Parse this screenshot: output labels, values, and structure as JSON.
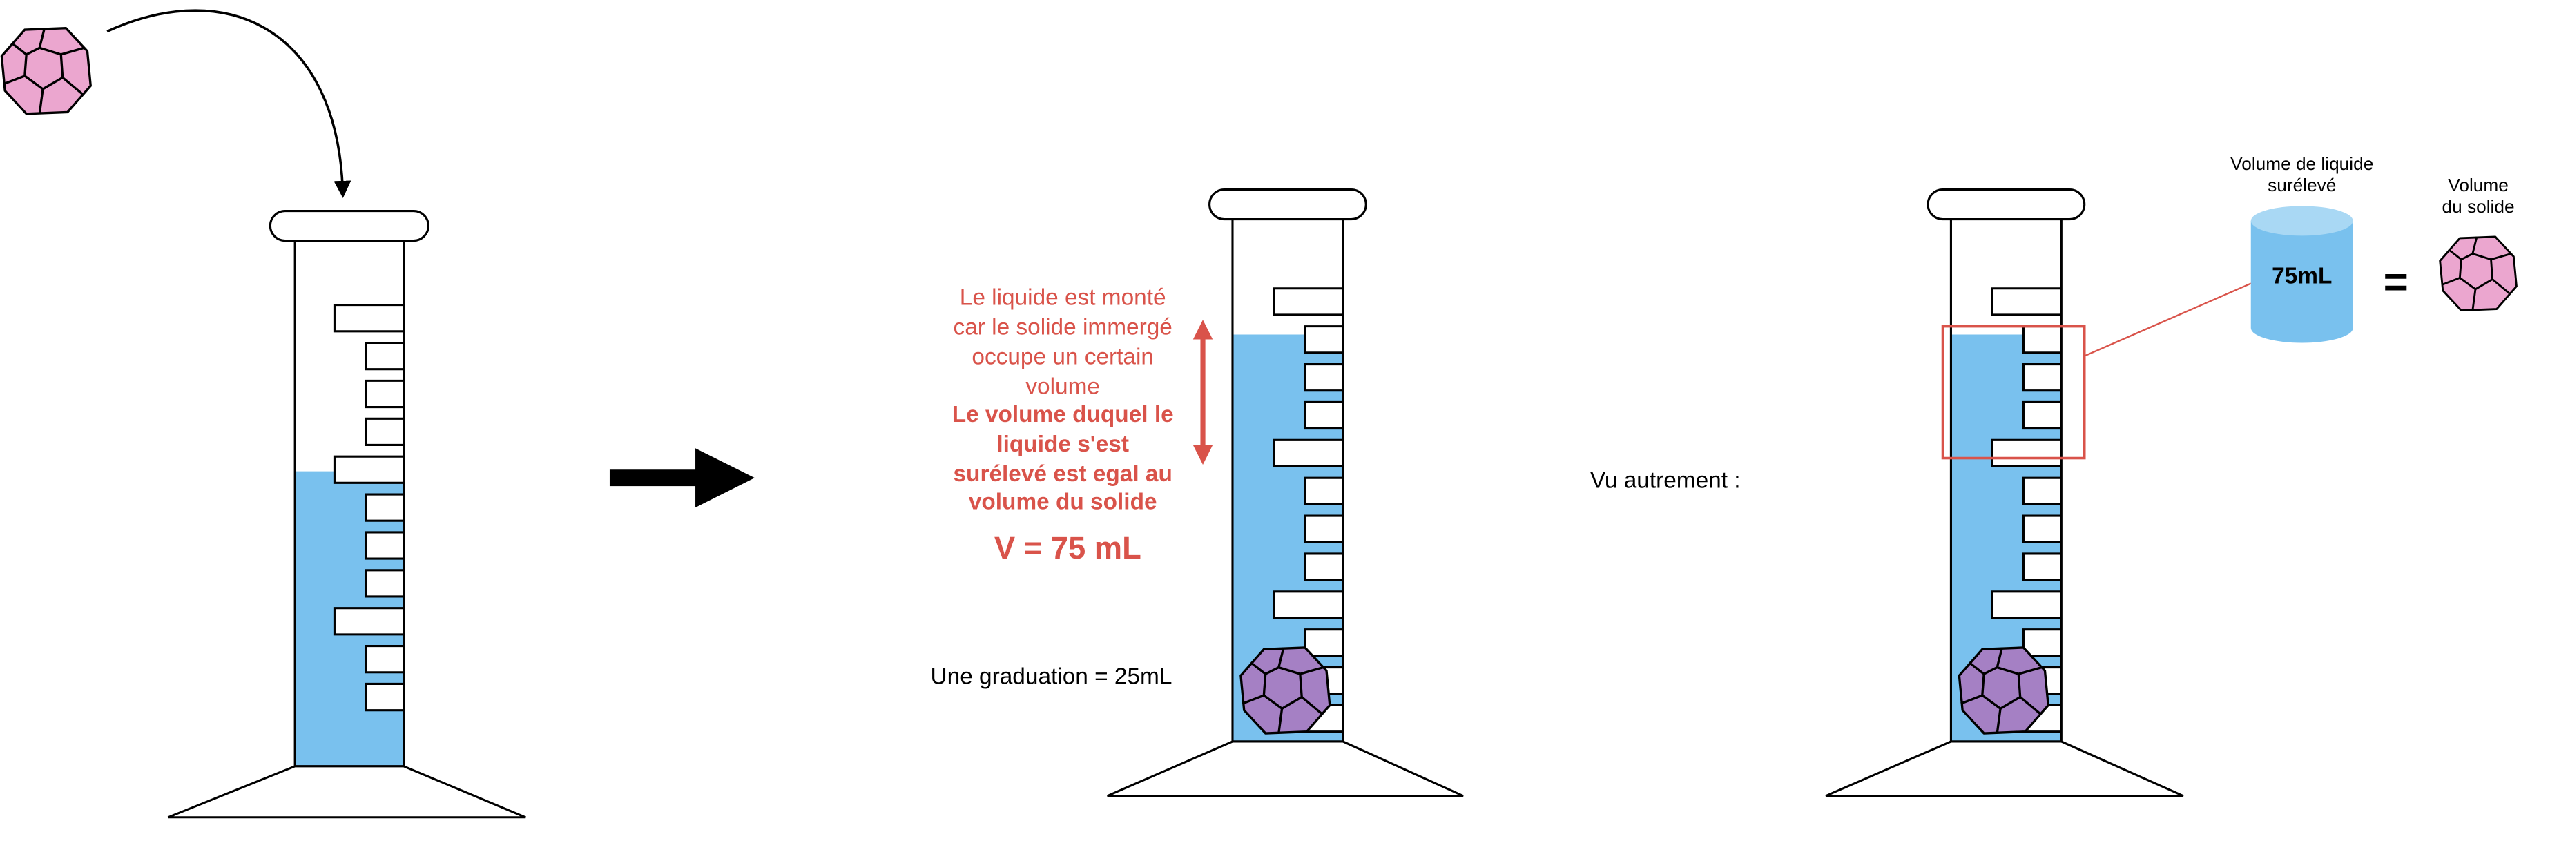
{
  "colors": {
    "liquid": "#79c1ee",
    "accent_red": "#d9534a",
    "solid_pink": "#eba6cf",
    "solid_immersed": "#a580c4",
    "outline": "#000000"
  },
  "icons": {
    "solid": "dodecahedron-icon",
    "arrow": "right-arrow-icon",
    "cylinder": "graduated-cylinder-icon"
  },
  "explanation": {
    "line1": "Le liquide est monté",
    "line2": "car le solide immergé",
    "line3": "occupe un certain",
    "line4": "volume",
    "bold1": "Le volume duquel le",
    "bold2": "liquide s'est",
    "bold3": "surélevé est egal au",
    "bold4": "volume du solide",
    "formula": "V = 75 mL"
  },
  "graduation_note": "Une graduation = 25mL",
  "alt_view_label": "Vu autrement :",
  "raised_volume": {
    "title1": "Volume de liquide",
    "title2": "surélevé",
    "value": "75mL"
  },
  "equals_sign": "=",
  "solid_volume": {
    "title1": "Volume",
    "title2": "du solide"
  }
}
